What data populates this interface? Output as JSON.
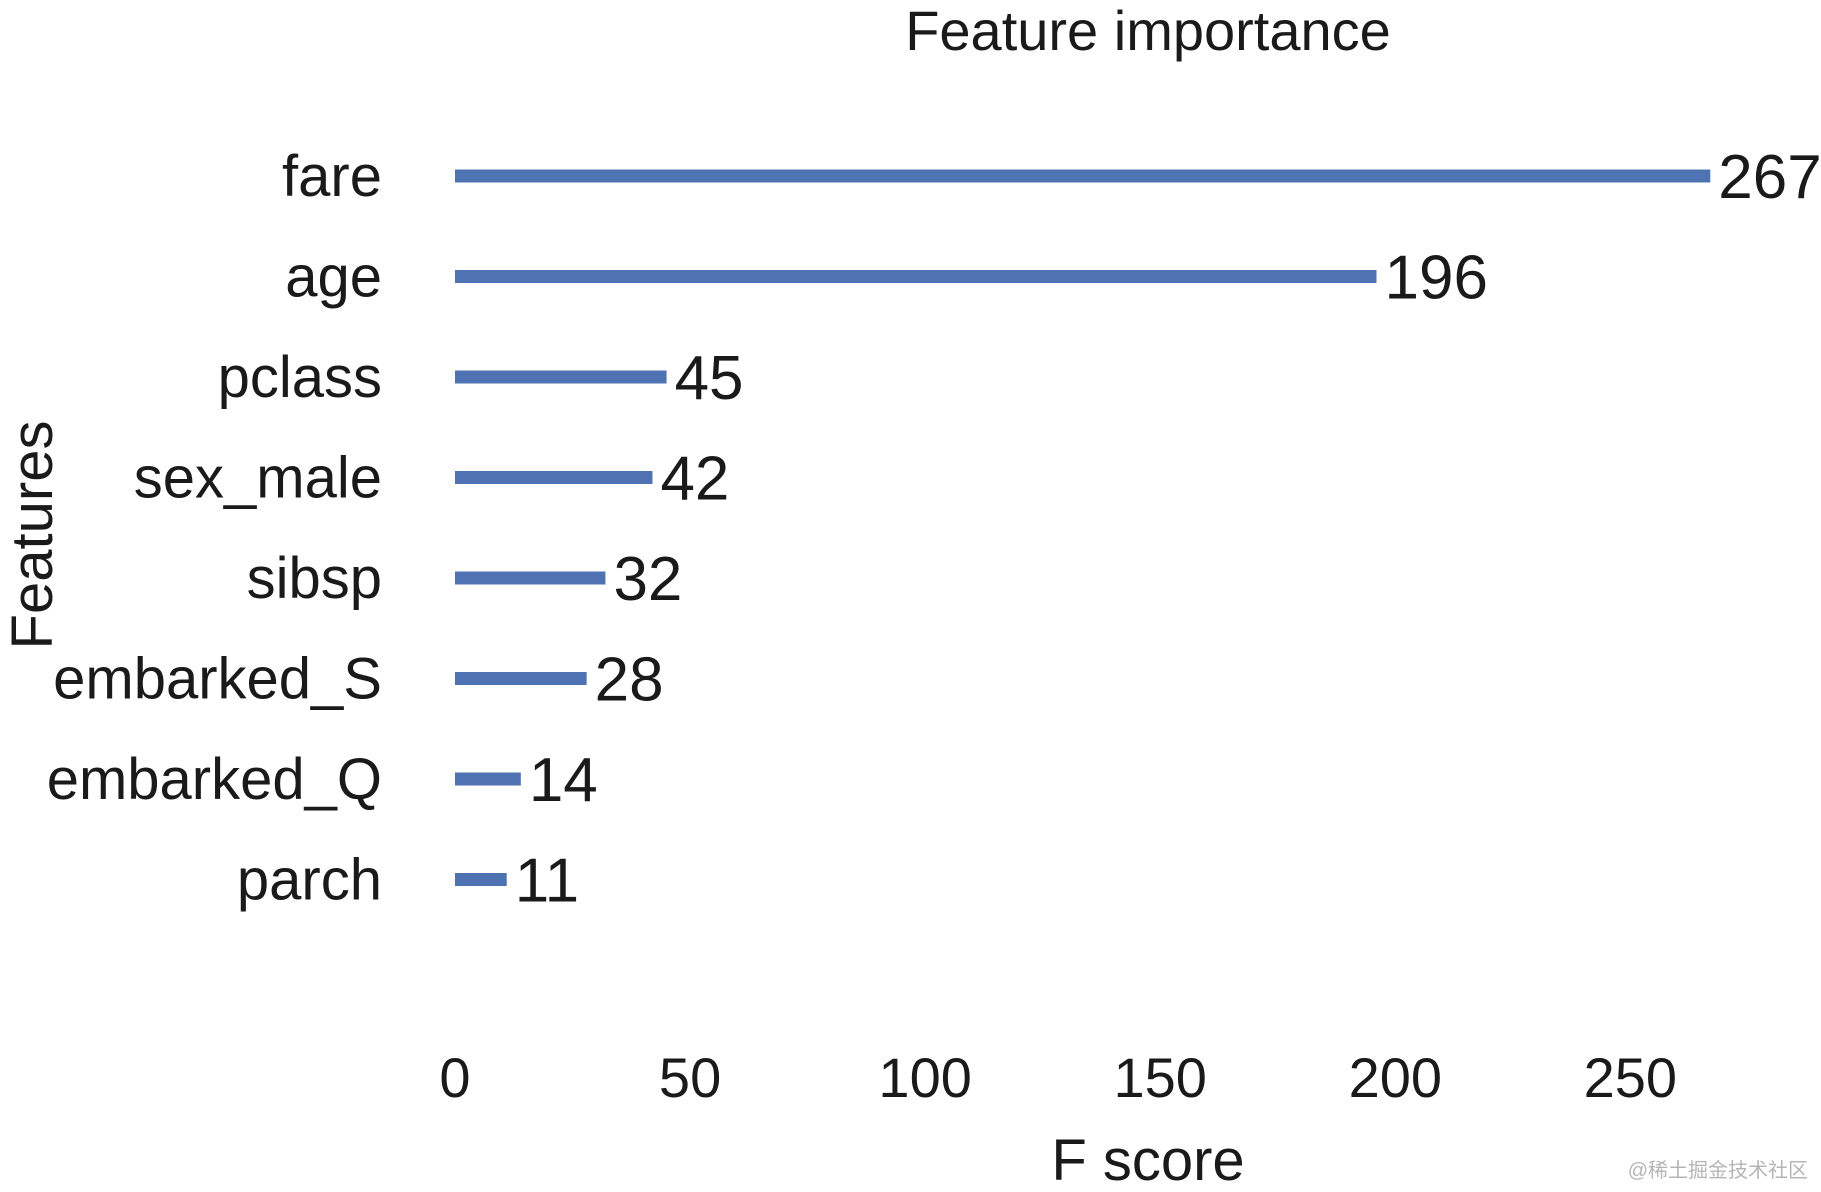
{
  "chart_data": {
    "type": "bar",
    "orientation": "horizontal",
    "title": "Feature importance",
    "xlabel": "F score",
    "ylabel": "Features",
    "categories": [
      "fare",
      "age",
      "pclass",
      "sex_male",
      "sibsp",
      "embarked_S",
      "embarked_Q",
      "parch"
    ],
    "values": [
      267,
      196,
      45,
      42,
      32,
      28,
      14,
      11
    ],
    "data_labels": [
      "267",
      "196",
      "45",
      "42",
      "32",
      "28",
      "14",
      "11"
    ],
    "xticks": [
      0,
      50,
      100,
      150,
      200,
      250
    ],
    "xtick_labels": [
      "0",
      "50",
      "100",
      "150",
      "200",
      "250"
    ],
    "xlim": [
      0,
      268
    ],
    "grid": false,
    "legend": "none",
    "bar_color": "#4f72b3"
  },
  "watermark": "@稀土掘金技术社区"
}
